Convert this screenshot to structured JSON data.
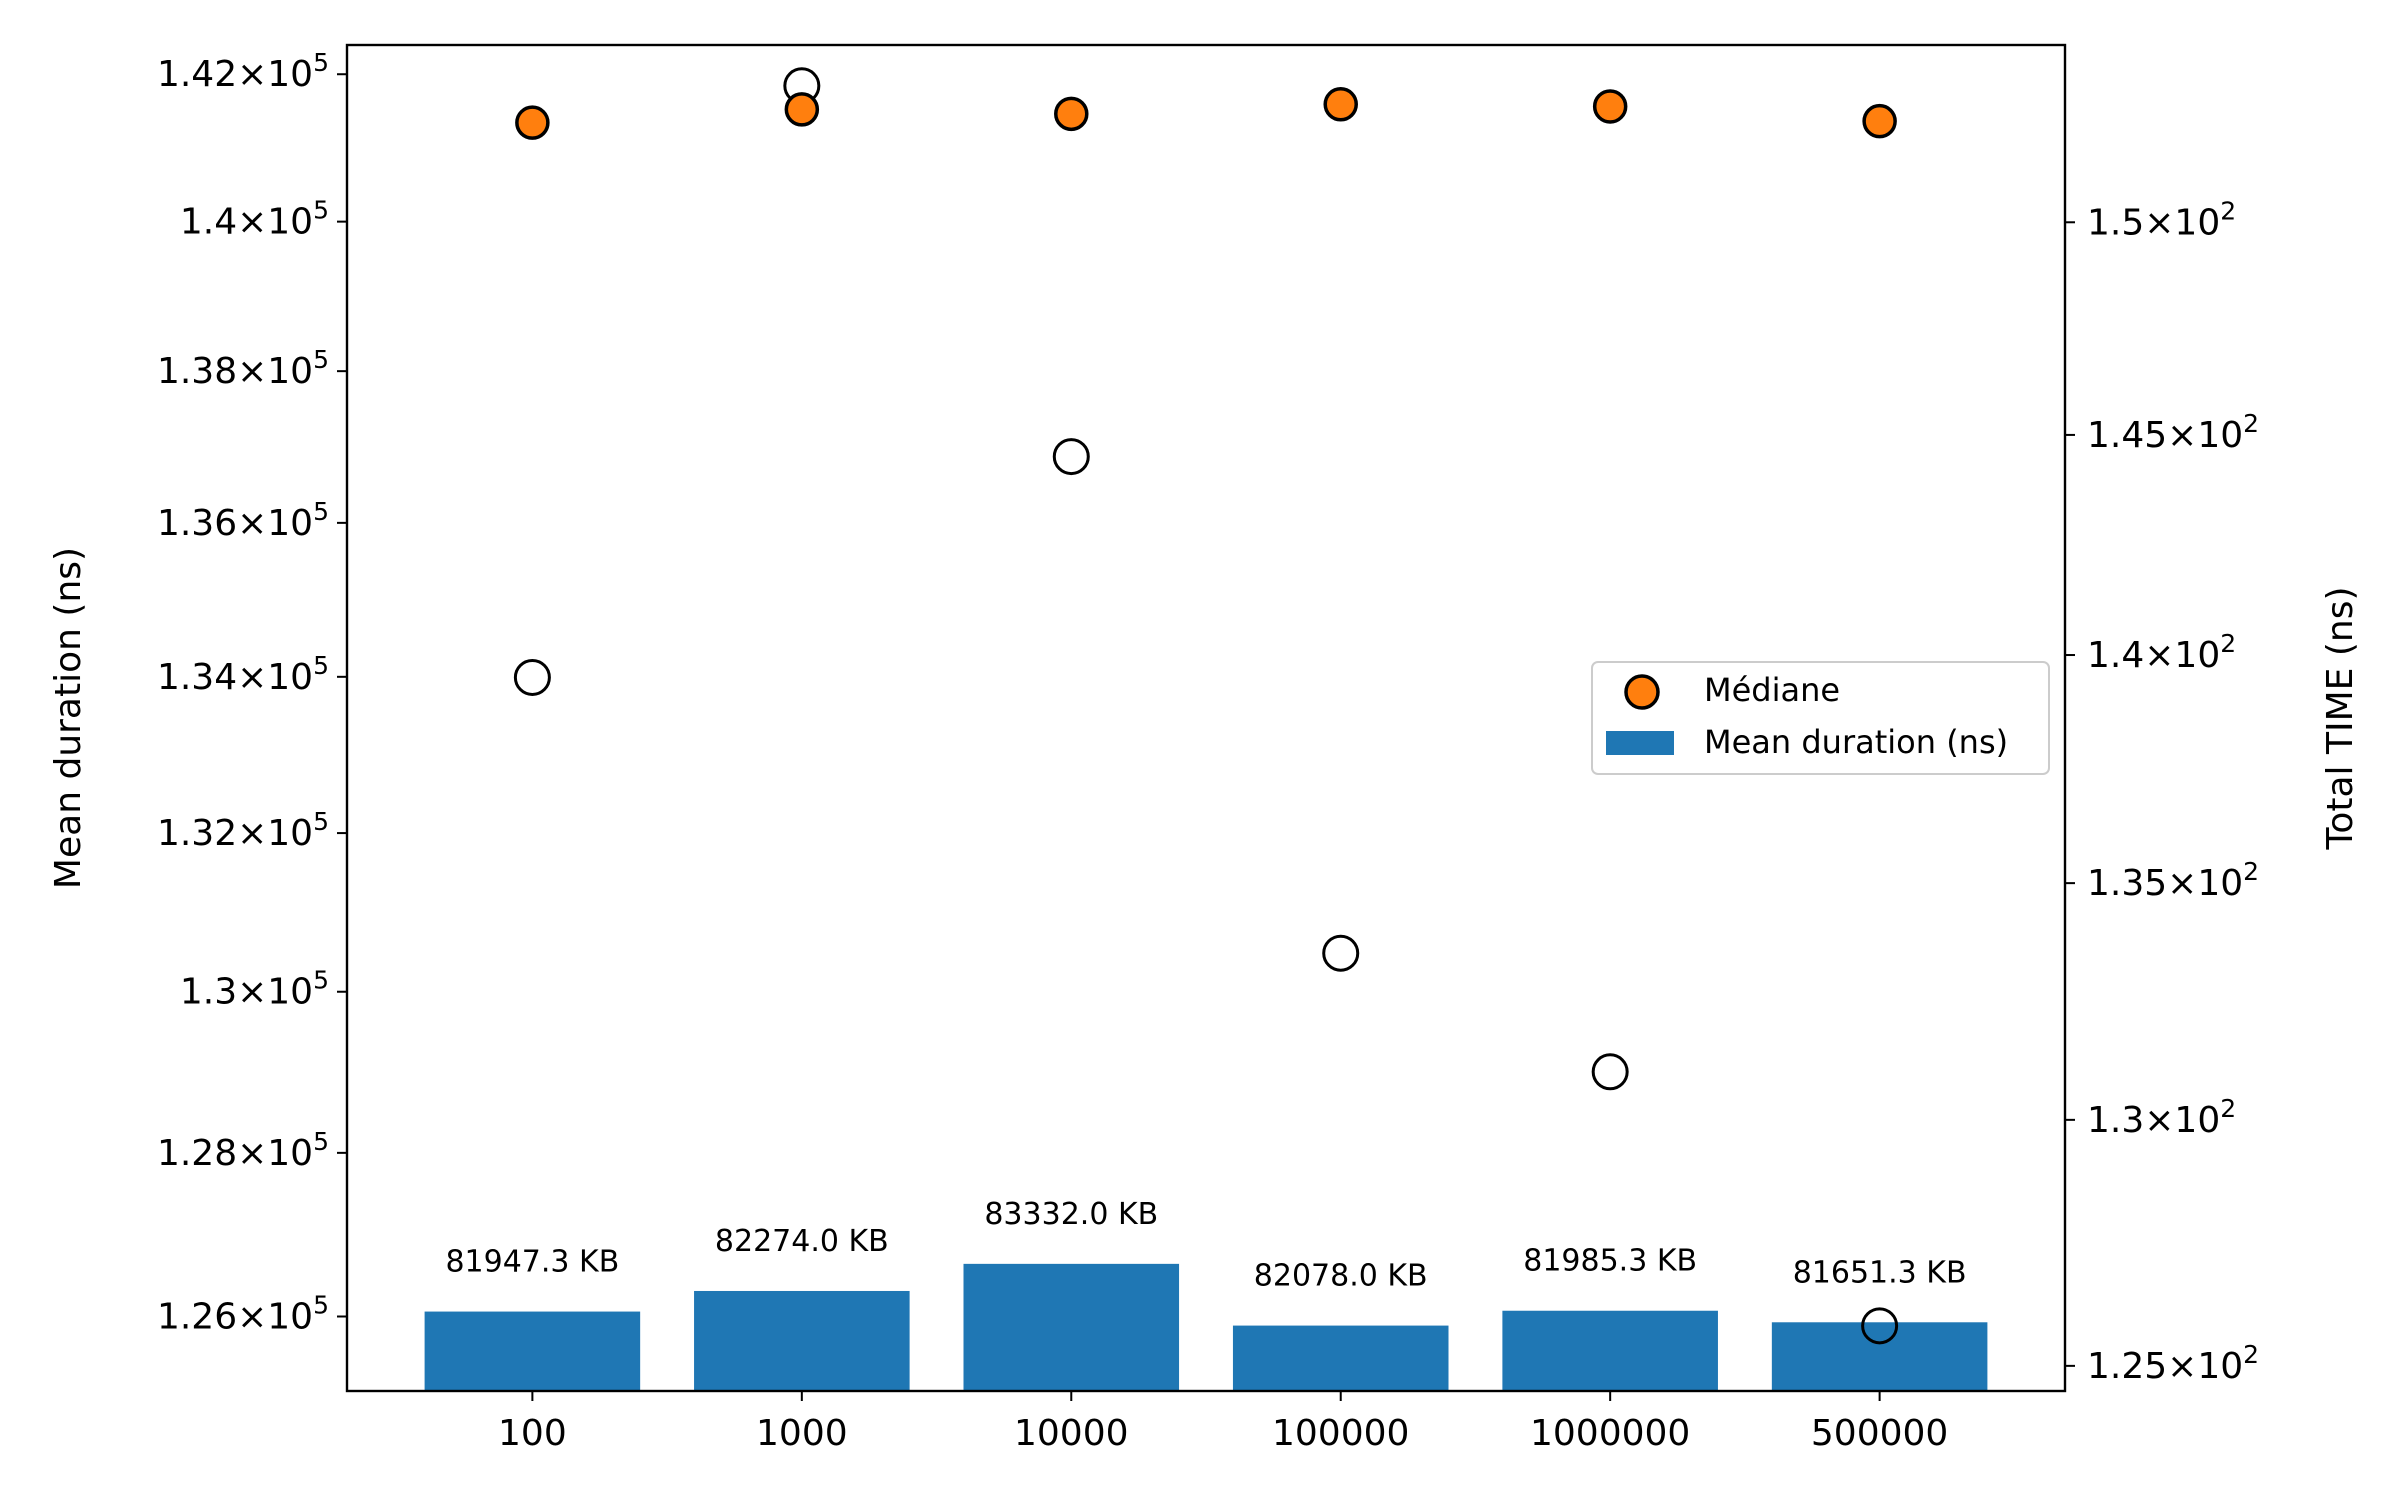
{
  "chart_data": {
    "type": "bar",
    "categories": [
      "100",
      "1000",
      "10000",
      "100000",
      "1000000",
      "500000"
    ],
    "left_axis": {
      "label": "Mean duration (ns)",
      "scale": "log",
      "ylim": [
        125100,
        142400
      ],
      "ticks": [
        {
          "mant": "1.26",
          "value": 126000
        },
        {
          "mant": "1.28",
          "value": 128000
        },
        {
          "mant": "1.3",
          "value": 130000
        },
        {
          "mant": "1.32",
          "value": 132000
        },
        {
          "mant": "1.34",
          "value": 134000
        },
        {
          "mant": "1.36",
          "value": 136000
        },
        {
          "mant": "1.38",
          "value": 138000
        },
        {
          "mant": "1.4",
          "value": 140000
        },
        {
          "mant": "1.42",
          "value": 142000
        }
      ]
    },
    "right_axis": {
      "label": "Total TIME (ns)",
      "scale": "log",
      "ylim": [
        124.5,
        154.3
      ],
      "ticks": [
        {
          "mant": "1.25",
          "value": 125
        },
        {
          "mant": "1.3",
          "value": 130
        },
        {
          "mant": "1.35",
          "value": 135
        },
        {
          "mant": "1.4",
          "value": 140
        },
        {
          "mant": "1.45",
          "value": 145
        },
        {
          "mant": "1.5",
          "value": 150
        }
      ]
    },
    "tick_base": "10",
    "left_exp": "5",
    "right_exp": "2",
    "series": [
      {
        "name": "Mean duration (ns)",
        "type": "bar",
        "axis": "left",
        "color": "#1f77b4",
        "values": [
          126060,
          126310,
          126640,
          125890,
          126070,
          125930
        ],
        "labels": [
          "81947.3 KB",
          "82274.0 KB",
          "83332.0 KB",
          "82078.0 KB",
          "81985.3 KB",
          "81651.3 KB"
        ]
      },
      {
        "name": "Médiane",
        "type": "scatter",
        "axis": "left",
        "color": "#ff7f0e",
        "values": [
          141340,
          141520,
          141460,
          141590,
          141560,
          141360
        ]
      },
      {
        "type": "scatter-open",
        "axis": "right",
        "color": "#000000",
        "values": [
          139.5,
          153.3,
          144.5,
          133.5,
          131.0,
          125.8
        ]
      }
    ],
    "legend": "center-right",
    "grid": false
  }
}
